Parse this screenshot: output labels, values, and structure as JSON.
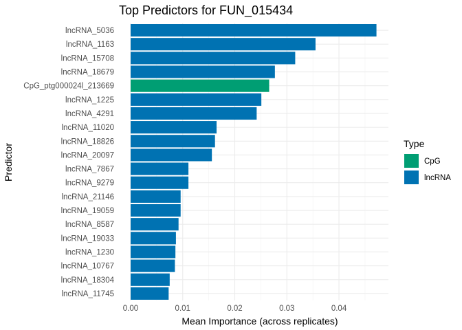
{
  "chart_data": {
    "type": "bar",
    "orientation": "horizontal",
    "title": "Top Predictors for FUN_015434",
    "xlabel": "Mean Importance (across replicates)",
    "ylabel": "Predictor",
    "xlim": [
      0,
      0.0495
    ],
    "xticks": [
      "0.00",
      "0.01",
      "0.02",
      "0.03",
      "0.04"
    ],
    "xtick_values": [
      0,
      0.01,
      0.02,
      0.03,
      0.04
    ],
    "grid": true,
    "legend": {
      "title": "Type",
      "position": "right",
      "entries": [
        {
          "label": "CpG",
          "color": "#009E73"
        },
        {
          "label": "lncRNA",
          "color": "#0072B2"
        }
      ]
    },
    "categories": [
      "lncRNA_5036",
      "lncRNA_1163",
      "lncRNA_15708",
      "lncRNA_18679",
      "CpG_ptg000024l_213669",
      "lncRNA_1225",
      "lncRNA_4291",
      "lncRNA_11020",
      "lncRNA_18826",
      "lncRNA_20097",
      "lncRNA_7867",
      "lncRNA_9279",
      "lncRNA_21146",
      "lncRNA_19059",
      "lncRNA_8587",
      "lncRNA_19033",
      "lncRNA_1230",
      "lncRNA_10767",
      "lncRNA_18304",
      "lncRNA_11745"
    ],
    "types": [
      "lncRNA",
      "lncRNA",
      "lncRNA",
      "lncRNA",
      "CpG",
      "lncRNA",
      "lncRNA",
      "lncRNA",
      "lncRNA",
      "lncRNA",
      "lncRNA",
      "lncRNA",
      "lncRNA",
      "lncRNA",
      "lncRNA",
      "lncRNA",
      "lncRNA",
      "lncRNA",
      "lncRNA",
      "lncRNA"
    ],
    "values": [
      0.0472,
      0.0355,
      0.0316,
      0.0277,
      0.0266,
      0.0251,
      0.0242,
      0.0165,
      0.0162,
      0.0156,
      0.0111,
      0.0111,
      0.0096,
      0.0096,
      0.0092,
      0.0087,
      0.0086,
      0.0085,
      0.0075,
      0.0073
    ]
  }
}
